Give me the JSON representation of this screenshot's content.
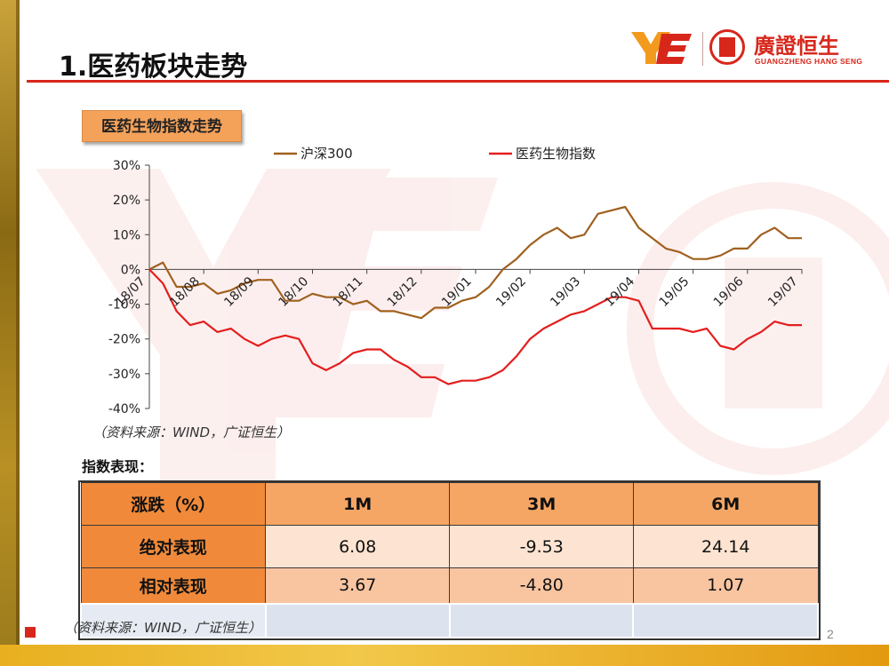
{
  "slide": {
    "title": "1.医药板块走势",
    "page_number": "2",
    "accent_color": "#d7271b"
  },
  "logo": {
    "name_cn": "廣證恒生",
    "name_en": "GUANGZHENG HANG SENG",
    "mark": "YE"
  },
  "chart_badge": "医药生物指数走势",
  "chart_data": {
    "type": "line",
    "ylim": [
      -40,
      30
    ],
    "y_ticks": [
      "30%",
      "20%",
      "10%",
      "0%",
      "-10%",
      "-20%",
      "-30%",
      "-40%"
    ],
    "y_tick_values": [
      30,
      20,
      10,
      0,
      -10,
      -20,
      -30,
      -40
    ],
    "x_tick_labels": [
      "18/07",
      "18/08",
      "18/09",
      "18/10",
      "18/11",
      "18/12",
      "19/01",
      "19/02",
      "19/03",
      "19/04",
      "19/05",
      "19/06",
      "19/07"
    ],
    "x": [
      0,
      0.25,
      0.5,
      0.75,
      1,
      1.25,
      1.5,
      1.75,
      2,
      2.25,
      2.5,
      2.75,
      3,
      3.25,
      3.5,
      3.75,
      4,
      4.25,
      4.5,
      4.75,
      5,
      5.25,
      5.5,
      5.75,
      6,
      6.25,
      6.5,
      6.75,
      7,
      7.25,
      7.5,
      7.75,
      8,
      8.25,
      8.5,
      8.75,
      9,
      9.25,
      9.5,
      9.75,
      10,
      10.25,
      10.5,
      10.75,
      11,
      11.25,
      11.5,
      11.75,
      12
    ],
    "series": [
      {
        "name": "沪深300",
        "color": "#a0601e",
        "values": [
          0,
          2,
          -5,
          -5,
          -4,
          -7,
          -6,
          -4,
          -3,
          -3,
          -9,
          -9,
          -7,
          -8,
          -8,
          -10,
          -9,
          -12,
          -12,
          -13,
          -14,
          -11,
          -11,
          -9,
          -8,
          -5,
          0,
          3,
          7,
          10,
          12,
          9,
          10,
          16,
          17,
          18,
          12,
          9,
          6,
          5,
          3,
          3,
          4,
          6,
          6,
          10,
          12,
          9,
          9
        ]
      },
      {
        "name": "医药生物指数",
        "color": "#e41e1e",
        "values": [
          0,
          -4,
          -12,
          -16,
          -15,
          -18,
          -17,
          -20,
          -22,
          -20,
          -19,
          -20,
          -27,
          -29,
          -27,
          -24,
          -23,
          -23,
          -26,
          -28,
          -31,
          -31,
          -33,
          -32,
          -32,
          -31,
          -29,
          -25,
          -20,
          -17,
          -15,
          -13,
          -12,
          -10,
          -8,
          -8,
          -9,
          -17,
          -17,
          -17,
          -18,
          -17,
          -22,
          -23,
          -20,
          -18,
          -15,
          -16,
          -16
        ]
      }
    ]
  },
  "source_note": "（资料来源：WIND，广证恒生）",
  "table": {
    "title": "指数表现：",
    "header": [
      "涨跌（%）",
      "1M",
      "3M",
      "6M"
    ],
    "rows": [
      {
        "label": "绝对表现",
        "values": [
          "6.08",
          "-9.53",
          "24.14"
        ]
      },
      {
        "label": "相对表现",
        "values": [
          "3.67",
          "-4.80",
          "1.07"
        ]
      }
    ]
  },
  "source_note_2": "（资料来源：WIND，广证恒生）"
}
